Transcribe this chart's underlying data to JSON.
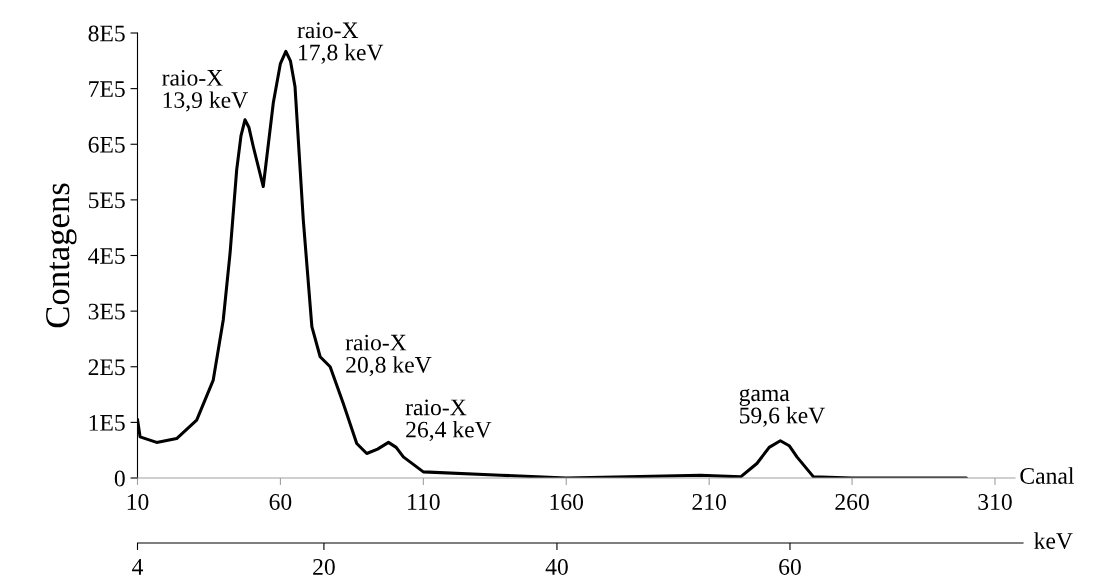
{
  "chart_data": {
    "type": "line",
    "xlabel": "Canal",
    "ylabel": "Contagens",
    "x2label": "keV",
    "series": [
      {
        "color": "#000000",
        "x": [
          10,
          10.9,
          16.7,
          23.7,
          30.7,
          36.5,
          40,
          42.4,
          44.7,
          46.2,
          47.6,
          49,
          50.5,
          54,
          57.5,
          60,
          61.9,
          63.5,
          65.1,
          68,
          71,
          73.9,
          77.4,
          82,
          86.7,
          90.2,
          94,
          97.8,
          100.5,
          103,
          110,
          137,
          160,
          207,
          221,
          226.7,
          231,
          234.9,
          238,
          240.7,
          246.5,
          260,
          300
        ],
        "values": [
          105000,
          74000,
          64000,
          71000,
          104000,
          176000,
          284000,
          405000,
          554000,
          615000,
          644000,
          630000,
          596000,
          524000,
          674000,
          745000,
          767000,
          750000,
          704000,
          464000,
          272000,
          218000,
          200000,
          134000,
          62000,
          44000,
          52000,
          64000,
          55000,
          38000,
          11000,
          5000,
          0,
          5000,
          2000,
          26000,
          55000,
          67000,
          58000,
          38000,
          2000,
          0,
          0
        ]
      }
    ],
    "xlim": [
      10,
      317
    ],
    "xticks": [
      10,
      60,
      110,
      160,
      210,
      260,
      310
    ],
    "ylim": [
      0,
      800000
    ],
    "yticks": [
      0,
      {
        "value": 100000,
        "label": "1E5"
      },
      {
        "value": 200000,
        "label": "2E5"
      },
      {
        "value": 300000,
        "label": "3E5"
      },
      {
        "value": 400000,
        "label": "4E5"
      },
      {
        "value": 500000,
        "label": "5E5"
      },
      {
        "value": 600000,
        "label": "6E5"
      },
      {
        "value": 700000,
        "label": "7E5"
      },
      {
        "value": 800000,
        "label": "8E5"
      }
    ],
    "x2lim": [
      4,
      80
    ],
    "x2ticks": [
      4,
      20,
      40,
      60
    ],
    "grid": false,
    "legend": false,
    "marker": "none",
    "line_style": "solid",
    "annotations": [
      {
        "text": "raio-X\n13,9 keV",
        "x": 47.6,
        "y": 644000
      },
      {
        "text": "raio-X\n17,8 keV",
        "x": 61.9,
        "y": 767000
      },
      {
        "text": "raio-X\n20,8 keV",
        "x": 73.9,
        "y": 218000
      },
      {
        "text": "raio-X\n26,4 keV",
        "x": 97.8,
        "y": 64000
      },
      {
        "text": "gama\n59,6 keV",
        "x": 234.9,
        "y": 67000
      }
    ]
  }
}
